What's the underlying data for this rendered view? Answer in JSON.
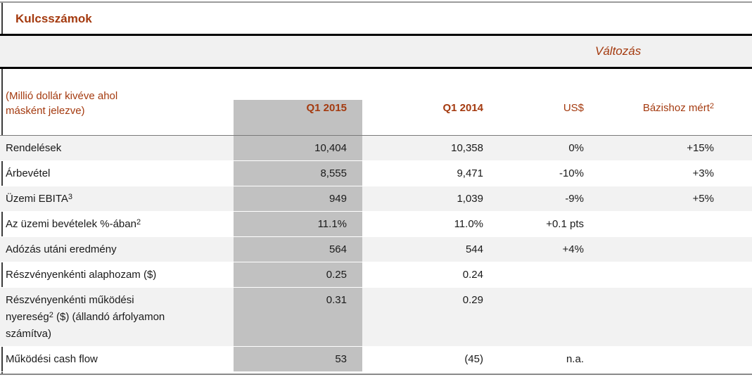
{
  "title": "Kulcsszámok",
  "change_header": "Változás",
  "colors": {
    "accent_red": "#a43a0f",
    "column_highlight_gray": "#c1c1c1",
    "band_gray": "#f1f1f1",
    "stripe_gray": "#f2f2f2"
  },
  "header": {
    "label_line1": "(Millió dollár kivéve ahol",
    "label_line2": "másként jelezve)",
    "col_q1_2015": "Q1 2015",
    "col_q1_2014": "Q1 2014",
    "col_usd": "US$",
    "col_base_pre": "Bázishoz mért",
    "col_base_sup": "2"
  },
  "rows": [
    {
      "label": {
        "pre": "Rendelések",
        "sup": "",
        "post": ""
      },
      "v2015": "10,404",
      "v2014": "10,358",
      "usd": "0%",
      "base": "+15%"
    },
    {
      "label": {
        "pre": "Árbevétel",
        "sup": "",
        "post": ""
      },
      "v2015": "8,555",
      "v2014": "9,471",
      "usd": "-10%",
      "base": "+3%"
    },
    {
      "label": {
        "pre": "Üzemi EBITA",
        "sup": "3",
        "post": ""
      },
      "v2015": "949",
      "v2014": "1,039",
      "usd": "-9%",
      "base": "+5%"
    },
    {
      "label": {
        "pre": "Az üzemi bevételek %-ában",
        "sup": "2",
        "post": ""
      },
      "v2015": "11.1%",
      "v2014": "11.0%",
      "usd": "+0.1 pts",
      "base": ""
    },
    {
      "label": {
        "pre": "Adózás utáni eredmény",
        "sup": "",
        "post": ""
      },
      "v2015": "564",
      "v2014": "544",
      "usd": "+4%",
      "base": ""
    },
    {
      "label": {
        "pre": "Részvényenkénti alaphozam ($)",
        "sup": "",
        "post": ""
      },
      "v2015": "0.25",
      "v2014": "0.24",
      "usd": "",
      "base": ""
    },
    {
      "label": {
        "line1": "Részvényenkénti működési",
        "line2_pre": "nyereség",
        "line2_sup": "2",
        "line2_post": " ($) (állandó árfolyamon",
        "line3": "számítva)"
      },
      "v2015": "0.31",
      "v2014": "0.29",
      "usd": "",
      "base": ""
    },
    {
      "label": {
        "pre": "Működési cash flow",
        "sup": "",
        "post": ""
      },
      "v2015": "53",
      "v2014": "(45)",
      "usd": "n.a.",
      "base": ""
    }
  ]
}
